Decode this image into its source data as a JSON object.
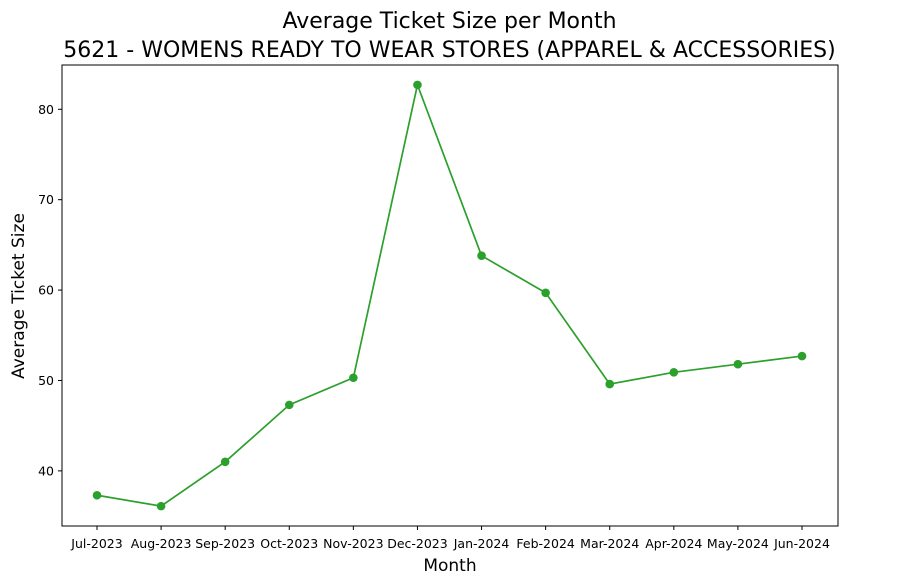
{
  "chart_data": {
    "type": "line",
    "title": "Average Ticket Size per Month",
    "subtitle": "5621 - WOMENS READY TO WEAR STORES (APPAREL & ACCESSORIES)",
    "xlabel": "Month",
    "ylabel": "Average Ticket Size",
    "categories": [
      "Jul-2023",
      "Aug-2023",
      "Sep-2023",
      "Oct-2023",
      "Nov-2023",
      "Dec-2023",
      "Jan-2024",
      "Feb-2024",
      "Mar-2024",
      "Apr-2024",
      "May-2024",
      "Jun-2024"
    ],
    "series": [
      {
        "values": [
          37.3,
          36.1,
          41.0,
          47.3,
          50.3,
          82.7,
          63.8,
          59.7,
          49.6,
          50.9,
          51.8,
          52.7
        ],
        "color": "#2ca02c"
      }
    ],
    "yticks": [
      40,
      50,
      60,
      70,
      80
    ],
    "ylim": [
      33.9,
      84.9
    ],
    "grid": false,
    "legend": "none"
  }
}
